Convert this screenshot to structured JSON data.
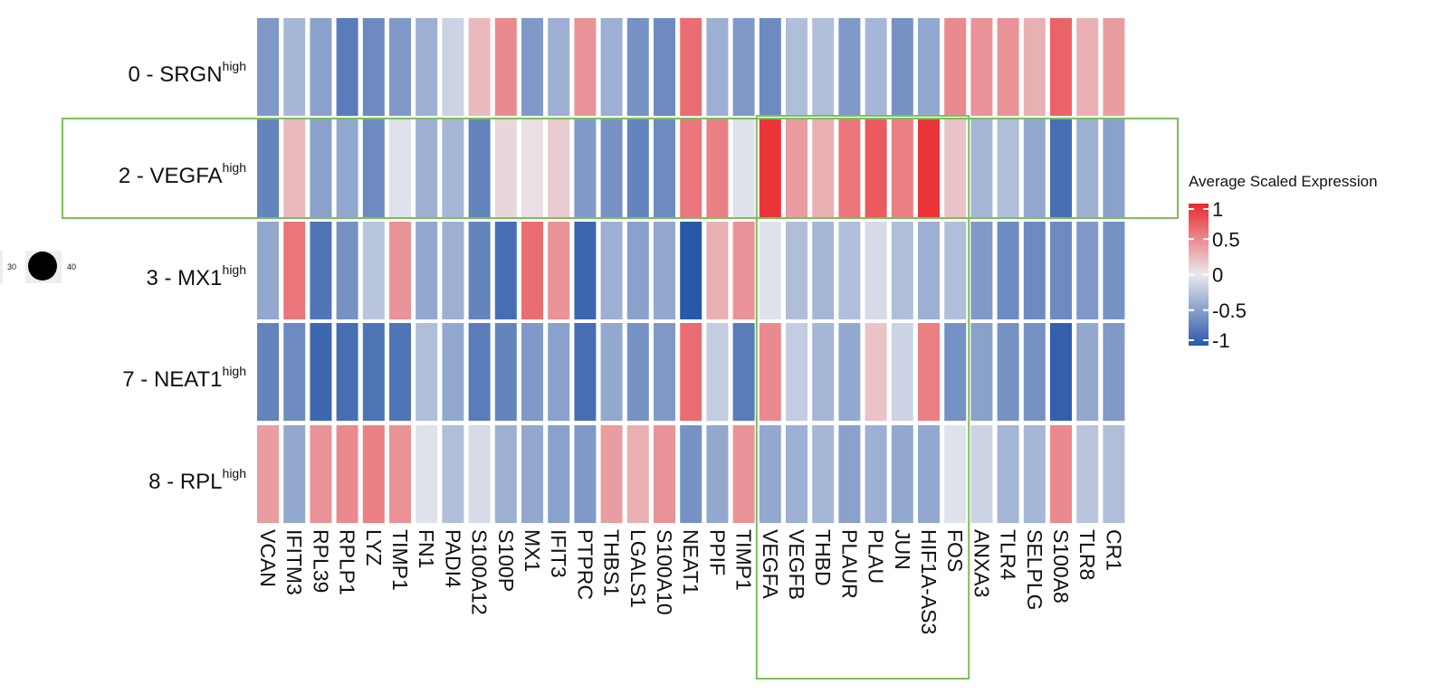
{
  "chart_data": {
    "type": "heatmap",
    "title": "",
    "rows": [
      {
        "prefix": "0 - SRGN",
        "sup": "high"
      },
      {
        "prefix": "2 - VEGFA",
        "sup": "high"
      },
      {
        "prefix": "3 - MX1",
        "sup": "high"
      },
      {
        "prefix": "7 -  NEAT1",
        "sup": "high"
      },
      {
        "prefix": "8 - RPL",
        "sup": "high"
      }
    ],
    "genes": [
      "VCAN",
      "IFITM3",
      "RPL39",
      "RPLP1",
      "LYZ",
      "TIMP1",
      "FN1",
      "PADI4",
      "S100A12",
      "S100P",
      "MX1",
      "IFIT3",
      "PTPRC",
      "THBS1",
      "LGALS1",
      "S100A10",
      "NEAT1",
      "PPIF",
      "TIMP1",
      "VEGFA",
      "VEGFB",
      "THBD",
      "PLAUR",
      "PLAU",
      "JUN",
      "HIF1A-AS3",
      "FOS",
      "ANXA3",
      "TLR4",
      "SELPLG",
      "S100A8",
      "TLR8",
      "CR1"
    ],
    "values": [
      [
        -0.55,
        -0.35,
        -0.5,
        -0.75,
        -0.65,
        -0.55,
        -0.4,
        -0.15,
        0.25,
        0.5,
        -0.55,
        -0.4,
        0.45,
        -0.4,
        -0.6,
        -0.65,
        0.65,
        -0.4,
        -0.55,
        -0.65,
        -0.3,
        -0.3,
        -0.55,
        -0.35,
        -0.6,
        -0.45,
        0.5,
        0.45,
        0.45,
        0.3,
        0.7,
        0.3,
        0.4
      ],
      [
        -0.7,
        0.25,
        -0.5,
        -0.45,
        -0.65,
        -0.05,
        -0.4,
        -0.35,
        -0.7,
        0.1,
        0.05,
        0.15,
        -0.55,
        -0.6,
        -0.7,
        -0.65,
        0.6,
        0.55,
        -0.05,
        0.95,
        0.4,
        0.3,
        0.6,
        0.75,
        0.55,
        0.95,
        0.2,
        -0.35,
        -0.3,
        -0.45,
        -0.85,
        -0.4,
        -0.5
      ],
      [
        -0.45,
        0.6,
        -0.8,
        -0.6,
        -0.25,
        0.45,
        -0.45,
        -0.4,
        -0.7,
        -0.85,
        0.65,
        0.45,
        -0.9,
        -0.4,
        -0.5,
        -0.45,
        -1.0,
        0.3,
        0.45,
        -0.05,
        -0.3,
        -0.35,
        -0.3,
        -0.1,
        -0.3,
        -0.4,
        -0.3,
        -0.55,
        -0.65,
        -0.65,
        -0.65,
        -0.55,
        -0.6
      ],
      [
        -0.7,
        -0.65,
        -0.9,
        -0.85,
        -0.8,
        -0.8,
        -0.3,
        -0.45,
        -0.75,
        -0.7,
        -0.55,
        -0.5,
        -0.85,
        -0.45,
        -0.6,
        -0.55,
        0.65,
        -0.2,
        -0.75,
        0.5,
        -0.2,
        -0.35,
        -0.45,
        0.2,
        -0.15,
        0.55,
        -0.6,
        -0.5,
        -0.6,
        -0.6,
        -0.95,
        -0.45,
        -0.55
      ],
      [
        0.4,
        -0.45,
        0.45,
        0.5,
        0.55,
        0.45,
        -0.05,
        -0.3,
        -0.1,
        -0.4,
        -0.45,
        -0.5,
        -0.55,
        0.4,
        0.3,
        0.45,
        -0.6,
        -0.45,
        0.45,
        -0.45,
        -0.4,
        -0.35,
        -0.5,
        -0.4,
        -0.45,
        -0.45,
        -0.05,
        -0.15,
        -0.35,
        -0.35,
        0.5,
        -0.25,
        -0.3
      ]
    ],
    "highlight": {
      "row": 1,
      "columns": [
        "VEGFA",
        "VEGFB",
        "THBD",
        "PLAUR",
        "PLAU",
        "JUN",
        "HIF1A-AS3",
        "FOS"
      ]
    },
    "legend": {
      "title": "Average Scaled Expression",
      "ticks": [
        1,
        0.5,
        0,
        -0.5,
        -1
      ],
      "tick_labels": [
        "1",
        "0.5",
        "0",
        "-0.5",
        "-1"
      ],
      "range": [
        -1,
        1
      ]
    },
    "side_legend": {
      "labels": [
        "30",
        "40"
      ]
    },
    "colors": {
      "low": "#2a58a8",
      "mid": "#e9e9ee",
      "high": "#ea2a2e",
      "highlight_box": "#7cbf5c"
    }
  }
}
